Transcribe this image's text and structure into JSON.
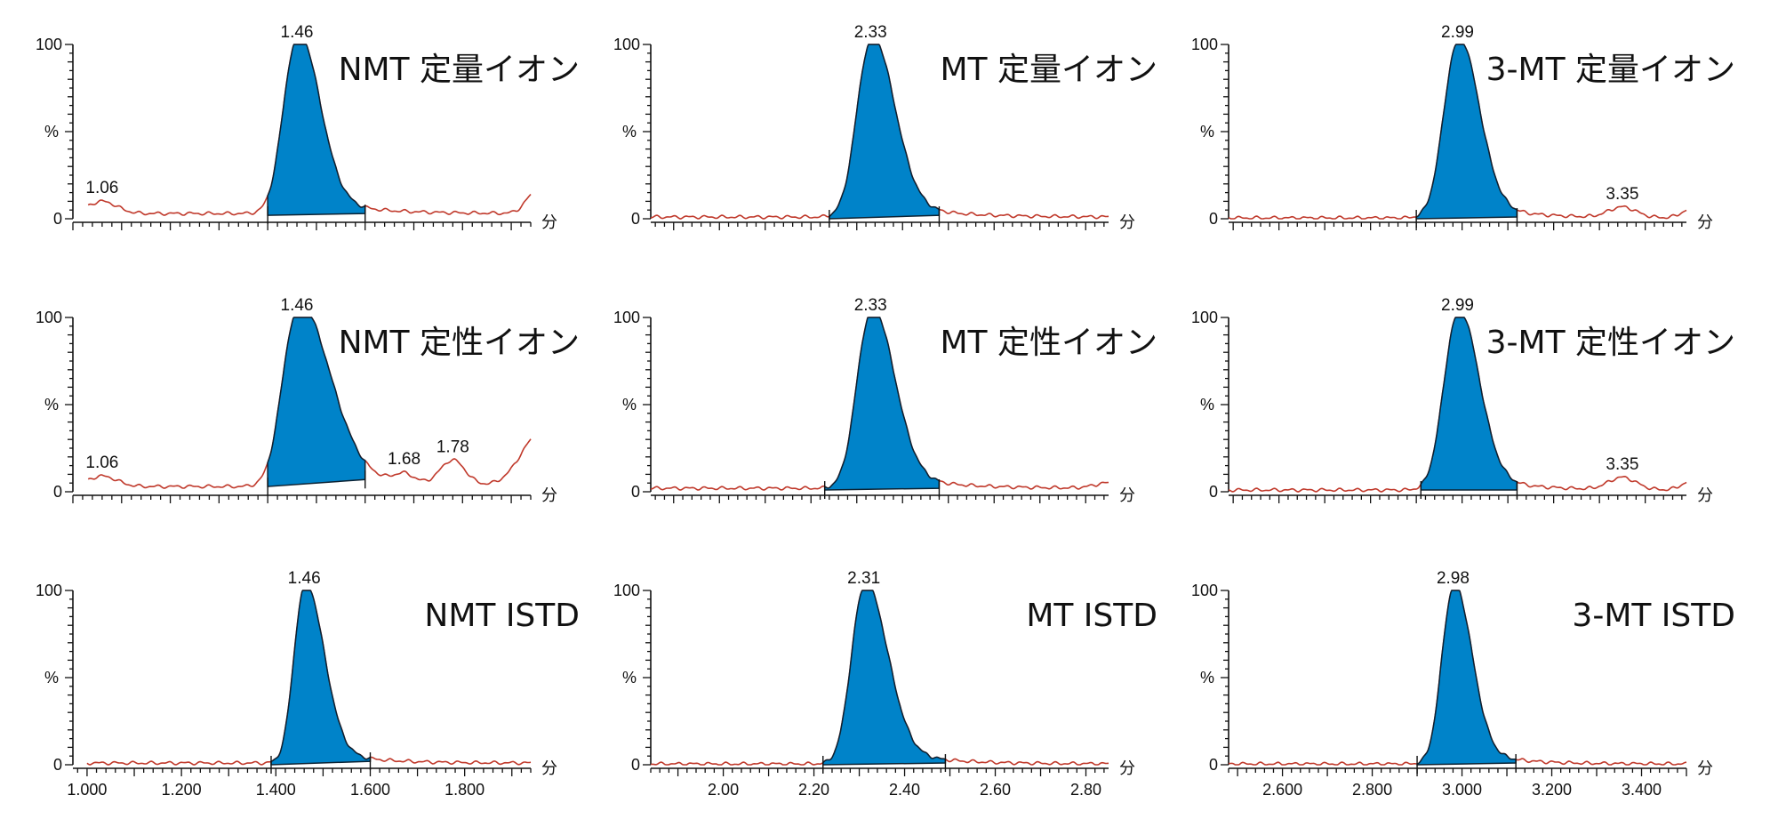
{
  "colors": {
    "peak_fill": "#0083c9",
    "trace": "#c0392b",
    "axis": "#111111"
  },
  "chart_data": [
    {
      "type": "area",
      "title": "NMT 定量イオン",
      "xunit": "分",
      "ylabel": "%",
      "yticks": [
        "0",
        "100"
      ],
      "xlim": [
        1.0,
        1.94
      ],
      "ylim": [
        0,
        100
      ],
      "xtick_labels": [],
      "show_x_labels": false,
      "peak": {
        "rt": 1.46,
        "width_left": 0.028,
        "width_right": 0.045,
        "integration": [
          1.4,
          1.6
        ],
        "base": [
          2,
          3
        ]
      },
      "baseline": 3,
      "bumps": [
        {
          "x": 1.06,
          "h": 7,
          "w": 0.03
        },
        {
          "x": 1.95,
          "h": 12,
          "w": 0.02
        }
      ],
      "peak_labels": [
        {
          "x": 1.46,
          "text": "1.46"
        },
        {
          "x": 1.06,
          "text": "1.06"
        }
      ]
    },
    {
      "type": "area",
      "title": "MT 定量イオン",
      "xunit": "分",
      "ylabel": "%",
      "yticks": [
        "0",
        "100"
      ],
      "xlim": [
        1.85,
        2.85
      ],
      "ylim": [
        0,
        100
      ],
      "xtick_labels": [],
      "show_x_labels": false,
      "peak": {
        "rt": 2.33,
        "width_left": 0.03,
        "width_right": 0.05,
        "integration": [
          2.24,
          2.48
        ],
        "base": [
          0,
          2
        ]
      },
      "baseline": 1,
      "bumps": [],
      "peak_labels": [
        {
          "x": 2.33,
          "text": "2.33"
        }
      ]
    },
    {
      "type": "area",
      "title": "3-MT 定量イオン",
      "xunit": "分",
      "ylabel": "%",
      "yticks": [
        "0",
        "100"
      ],
      "xlim": [
        2.49,
        3.49
      ],
      "ylim": [
        0,
        100
      ],
      "xtick_labels": [],
      "show_x_labels": false,
      "peak": {
        "rt": 2.99,
        "width_left": 0.03,
        "width_right": 0.045,
        "integration": [
          2.9,
          3.12
        ],
        "base": [
          0,
          1
        ]
      },
      "baseline": 0.5,
      "bumps": [
        {
          "x": 3.35,
          "h": 6,
          "w": 0.03
        },
        {
          "x": 3.5,
          "h": 5,
          "w": 0.02
        }
      ],
      "peak_labels": [
        {
          "x": 2.99,
          "text": "2.99"
        },
        {
          "x": 3.35,
          "text": "3.35"
        }
      ]
    },
    {
      "type": "area",
      "title": "NMT 定性イオン",
      "xunit": "分",
      "ylabel": "%",
      "yticks": [
        "0",
        "100"
      ],
      "xlim": [
        1.0,
        1.94
      ],
      "ylim": [
        0,
        100
      ],
      "xtick_labels": [],
      "show_x_labels": false,
      "peak": {
        "rt": 1.46,
        "width_left": 0.03,
        "width_right": 0.065,
        "integration": [
          1.4,
          1.6
        ],
        "base": [
          3,
          7
        ]
      },
      "baseline": 3,
      "bumps": [
        {
          "x": 1.06,
          "h": 6,
          "w": 0.03
        },
        {
          "x": 1.68,
          "h": 5,
          "w": 0.02
        },
        {
          "x": 1.78,
          "h": 14,
          "w": 0.025
        },
        {
          "x": 1.96,
          "h": 30,
          "w": 0.04
        }
      ],
      "peak_labels": [
        {
          "x": 1.46,
          "text": "1.46"
        },
        {
          "x": 1.06,
          "text": "1.06"
        },
        {
          "x": 1.68,
          "text": "1.68"
        },
        {
          "x": 1.78,
          "text": "1.78"
        }
      ]
    },
    {
      "type": "area",
      "title": "MT 定性イオン",
      "xunit": "分",
      "ylabel": "%",
      "yticks": [
        "0",
        "100"
      ],
      "xlim": [
        1.85,
        2.85
      ],
      "ylim": [
        0,
        100
      ],
      "xtick_labels": [],
      "show_x_labels": false,
      "peak": {
        "rt": 2.33,
        "width_left": 0.03,
        "width_right": 0.05,
        "integration": [
          2.23,
          2.48
        ],
        "base": [
          1,
          2
        ]
      },
      "baseline": 2,
      "bumps": [
        {
          "x": 2.85,
          "h": 3,
          "w": 0.03
        }
      ],
      "peak_labels": [
        {
          "x": 2.33,
          "text": "2.33"
        }
      ]
    },
    {
      "type": "area",
      "title": "3-MT 定性イオン",
      "xunit": "分",
      "ylabel": "%",
      "yticks": [
        "0",
        "100"
      ],
      "xlim": [
        2.49,
        3.49
      ],
      "ylim": [
        0,
        100
      ],
      "xtick_labels": [],
      "show_x_labels": false,
      "peak": {
        "rt": 2.99,
        "width_left": 0.03,
        "width_right": 0.045,
        "integration": [
          2.91,
          3.12
        ],
        "base": [
          1,
          1
        ]
      },
      "baseline": 1,
      "bumps": [
        {
          "x": 3.35,
          "h": 7,
          "w": 0.03
        },
        {
          "x": 3.5,
          "h": 5,
          "w": 0.02
        }
      ],
      "peak_labels": [
        {
          "x": 2.99,
          "text": "2.99"
        },
        {
          "x": 3.35,
          "text": "3.35"
        }
      ]
    },
    {
      "type": "area",
      "title": "NMT ISTD",
      "xunit": "分",
      "ylabel": "%",
      "yticks": [
        "0",
        "100"
      ],
      "xlim": [
        0.97,
        1.94
      ],
      "ylim": [
        0,
        100
      ],
      "xtick_labels": [
        "1.000",
        "1.200",
        "1.400",
        "1.600",
        "1.800"
      ],
      "show_x_labels": true,
      "peak": {
        "rt": 1.46,
        "width_left": 0.022,
        "width_right": 0.04,
        "integration": [
          1.39,
          1.6
        ],
        "base": [
          0,
          2
        ]
      },
      "baseline": 1,
      "bumps": [],
      "peak_labels": [
        {
          "x": 1.46,
          "text": "1.46"
        }
      ]
    },
    {
      "type": "area",
      "title": "MT ISTD",
      "xunit": "分",
      "ylabel": "%",
      "yticks": [
        "0",
        "100"
      ],
      "xlim": [
        1.84,
        2.85
      ],
      "ylim": [
        0,
        100
      ],
      "xtick_labels": [
        "2.00",
        "2.20",
        "2.40",
        "2.60",
        "2.80"
      ],
      "show_x_labels": true,
      "peak": {
        "rt": 2.31,
        "width_left": 0.028,
        "width_right": 0.05,
        "integration": [
          2.22,
          2.49
        ],
        "base": [
          0,
          1
        ]
      },
      "baseline": 0.5,
      "bumps": [],
      "peak_labels": [
        {
          "x": 2.31,
          "text": "2.31"
        }
      ]
    },
    {
      "type": "area",
      "title": "3-MT ISTD",
      "xunit": "分",
      "ylabel": "%",
      "yticks": [
        "0",
        "100"
      ],
      "xlim": [
        2.48,
        3.5
      ],
      "ylim": [
        0,
        100
      ],
      "xtick_labels": [
        "2.600",
        "2.800",
        "3.000",
        "3.200",
        "3.400"
      ],
      "show_x_labels": true,
      "peak": {
        "rt": 2.98,
        "width_left": 0.025,
        "width_right": 0.04,
        "integration": [
          2.9,
          3.12
        ],
        "base": [
          0,
          1
        ]
      },
      "baseline": 0.5,
      "bumps": [],
      "peak_labels": [
        {
          "x": 2.98,
          "text": "2.98"
        }
      ]
    }
  ]
}
